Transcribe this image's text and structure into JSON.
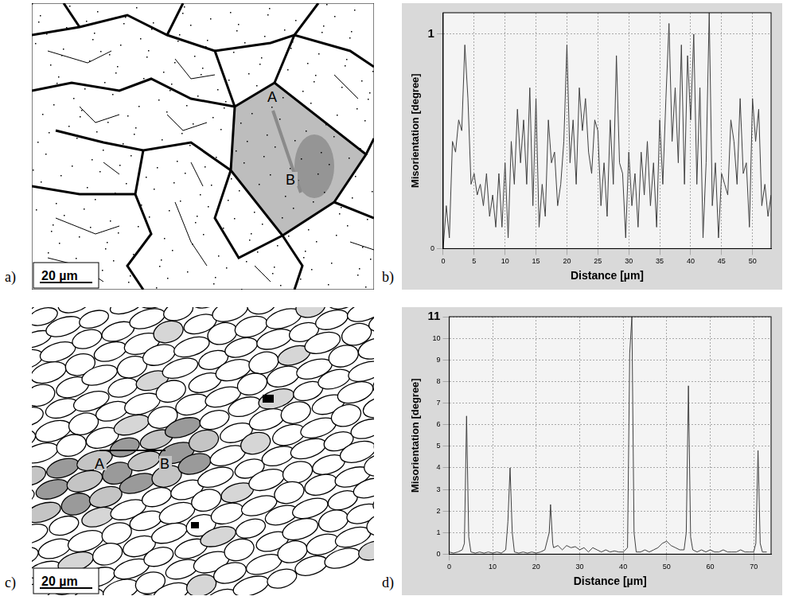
{
  "micrographs": [
    {
      "panel_label": "a)",
      "points": [
        "A",
        "B"
      ],
      "scale_bar": "20 µm"
    },
    {
      "panel_label": "c)",
      "points": [
        "A",
        "B"
      ],
      "scale_bar": "20 µm"
    }
  ],
  "chart_data": [
    {
      "panel_label": "b)",
      "type": "line",
      "x_label": "Distance [µm]",
      "y_label": "Misorientation [degree]",
      "color": "#404040",
      "x": [
        0,
        0.5,
        1,
        1.5,
        2,
        2.5,
        3,
        3.5,
        4,
        4.5,
        5,
        5.5,
        6,
        6.5,
        7,
        7.5,
        8,
        8.5,
        9,
        9.5,
        10,
        10.5,
        11,
        11.5,
        12,
        12.5,
        13,
        13.5,
        14,
        14.5,
        15,
        15.5,
        16,
        16.5,
        17,
        17.5,
        18,
        18.5,
        19,
        19.5,
        20,
        20.5,
        21,
        21.5,
        22,
        22.5,
        23,
        23.5,
        24,
        24.5,
        25,
        25.5,
        26,
        26.5,
        27,
        27.5,
        28,
        28.5,
        29,
        29.5,
        30,
        30.5,
        31,
        31.5,
        32,
        32.5,
        33,
        33.5,
        34,
        34.5,
        35,
        35.5,
        36,
        36.5,
        37,
        37.5,
        38,
        38.5,
        39,
        39.5,
        40,
        40.5,
        41,
        41.5,
        42,
        42.5,
        43,
        43.5,
        44,
        44.5,
        45,
        45.5,
        46,
        46.5,
        47,
        47.5,
        48,
        48.5,
        49,
        49.5,
        50,
        50.5,
        51,
        51.5,
        52,
        52.5,
        53
      ],
      "values": [
        0,
        0.2,
        0.05,
        0.5,
        0.45,
        0.6,
        0.55,
        0.95,
        0.7,
        0.3,
        0.35,
        0.25,
        0.3,
        0.2,
        0.35,
        0.15,
        0.25,
        0.1,
        0.35,
        0.1,
        0.4,
        0.05,
        0.5,
        0.3,
        0.65,
        0.4,
        0.6,
        0.3,
        0.75,
        0.2,
        0.7,
        0.1,
        0.3,
        0.15,
        0.6,
        0.4,
        0.45,
        0.2,
        0.3,
        0.5,
        0.95,
        0.4,
        0.6,
        0.3,
        0.75,
        0.55,
        0.7,
        0.45,
        0.35,
        0.6,
        0.55,
        0.2,
        0.4,
        0.15,
        0.6,
        0.3,
        0.9,
        0.4,
        0.35,
        0.05,
        0.45,
        0.2,
        0.35,
        0.1,
        0.45,
        0.25,
        0.5,
        0.2,
        0.4,
        0.1,
        0.6,
        0.3,
        0.7,
        1.05,
        0.5,
        0.75,
        0.4,
        0.95,
        0.3,
        0.9,
        0.6,
        1.0,
        0.3,
        0.75,
        0.05,
        0.4,
        1.1,
        0.2,
        0.4,
        0.05,
        0.35,
        0.3,
        0.25,
        0.6,
        0.5,
        0.3,
        0.7,
        0.35,
        0.4,
        0.1,
        0.7,
        0.5,
        0.65,
        0.2,
        0.3,
        0.15,
        0.25
      ],
      "xlim": [
        0,
        53
      ],
      "xticks": [
        0,
        5,
        10,
        15,
        20,
        25,
        30,
        35,
        40,
        45,
        50
      ],
      "ylim": [
        0,
        1.1
      ],
      "yticks": [
        0,
        1
      ],
      "grid": true
    },
    {
      "panel_label": "d)",
      "type": "line",
      "x_label": "Distance [µm]",
      "y_label": "Misorientation [degree]",
      "color": "#404040",
      "x": [
        0,
        1,
        2,
        3,
        3.5,
        4,
        4.5,
        5,
        6,
        7,
        8,
        9,
        10,
        11,
        12,
        13,
        13.5,
        14,
        14.5,
        15,
        16,
        17,
        18,
        19,
        20,
        21,
        22,
        23,
        23.3,
        23.8,
        24,
        25,
        26,
        27,
        28,
        29,
        30,
        31,
        32,
        33,
        34,
        35,
        36,
        37,
        38,
        39,
        40,
        41,
        41.5,
        42,
        42.5,
        43,
        44,
        45,
        46,
        47,
        48,
        49,
        50,
        51,
        52,
        53,
        54,
        54.5,
        55,
        55.5,
        56,
        57,
        58,
        59,
        60,
        61,
        62,
        63,
        64,
        65,
        66,
        67,
        68,
        69,
        70,
        70.5,
        71,
        71.5,
        72,
        73
      ],
      "values": [
        0.1,
        0.05,
        0.1,
        0.2,
        0.5,
        6.4,
        0.8,
        0.1,
        0.05,
        0.1,
        0.05,
        0.1,
        0.05,
        0.1,
        0.05,
        0.2,
        1.5,
        4.0,
        1.0,
        0.1,
        0.05,
        0.1,
        0.05,
        0.1,
        0.05,
        0.1,
        0.2,
        1.0,
        2.3,
        0.5,
        0.3,
        0.4,
        0.2,
        0.4,
        0.3,
        0.35,
        0.2,
        0.3,
        0.1,
        0.3,
        0.2,
        0.1,
        0.2,
        0.1,
        0.15,
        0.1,
        0.1,
        0.3,
        9.3,
        11,
        1.0,
        0.1,
        0.1,
        0.2,
        0.1,
        0.2,
        0.3,
        0.5,
        0.6,
        0.4,
        0.3,
        0.2,
        0.2,
        1.0,
        7.8,
        0.8,
        0.2,
        0.1,
        0.2,
        0.1,
        0.2,
        0.1,
        0.1,
        0.2,
        0.1,
        0.1,
        0.1,
        0.2,
        0.1,
        0.1,
        0.1,
        0.5,
        4.8,
        0.5,
        0.1,
        0.1
      ],
      "xlim": [
        0,
        74
      ],
      "xticks": [
        0,
        10,
        20,
        30,
        40,
        50,
        60,
        70
      ],
      "ylim": [
        0,
        11
      ],
      "yticks": [
        0,
        1,
        2,
        3,
        4,
        5,
        6,
        7,
        8,
        9,
        10,
        11
      ],
      "grid": true
    }
  ]
}
